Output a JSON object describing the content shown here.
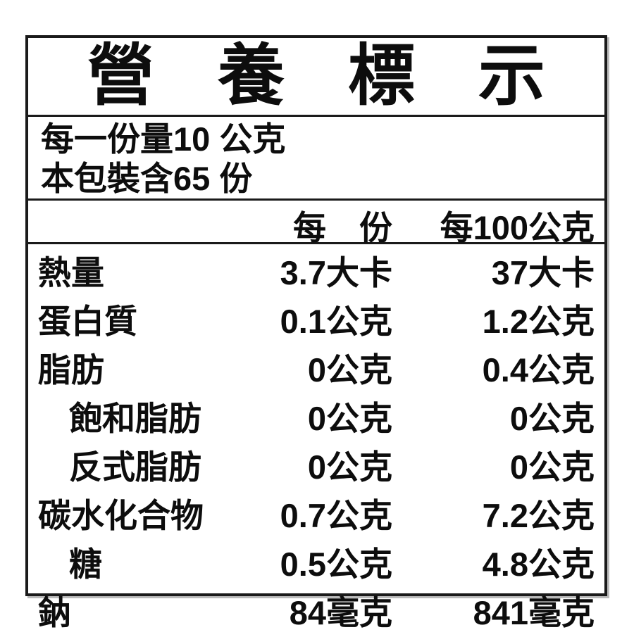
{
  "label": {
    "title": "營養標示",
    "serving_size": "每一份量10 公克",
    "servings_per_package": "本包裝含65 份",
    "columns": {
      "per_serving": "每　份",
      "per_100g": "每100公克"
    },
    "rows": [
      {
        "name": "熱量",
        "indent": false,
        "per_serving": "3.7大卡",
        "per_100g": "37大卡"
      },
      {
        "name": "蛋白質",
        "indent": false,
        "per_serving": "0.1公克",
        "per_100g": "1.2公克"
      },
      {
        "name": "脂肪",
        "indent": false,
        "per_serving": "0公克",
        "per_100g": "0.4公克"
      },
      {
        "name": "飽和脂肪",
        "indent": true,
        "per_serving": "0公克",
        "per_100g": "0公克"
      },
      {
        "name": "反式脂肪",
        "indent": true,
        "per_serving": "0公克",
        "per_100g": "0公克"
      },
      {
        "name": "碳水化合物",
        "indent": false,
        "per_serving": "0.7公克",
        "per_100g": "7.2公克"
      },
      {
        "name": "糖",
        "indent": true,
        "per_serving": "0.5公克",
        "per_100g": "4.8公克"
      },
      {
        "name": "鈉",
        "indent": false,
        "per_serving": "84毫克",
        "per_100g": "841毫克"
      }
    ]
  }
}
